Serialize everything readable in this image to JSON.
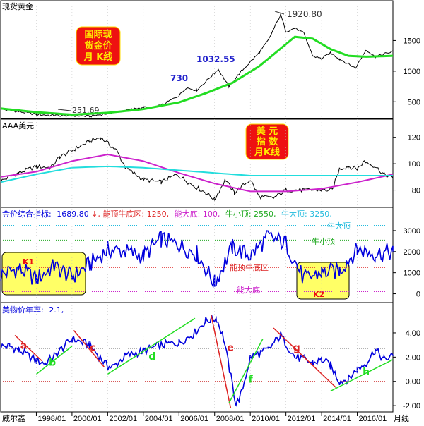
{
  "chart_data": {
    "type": "line",
    "panels": [
      {
        "title": "现货黄金",
        "y_ticks": [
          500,
          1000,
          1500
        ],
        "ylim": [
          250,
          2000
        ],
        "series": [
          {
            "color": "#000000",
            "x": [
              1996.0,
              1997.0,
              1998.0,
              1999.0,
              2000.0,
              2001.0,
              2002.0,
              2003.0,
              2004.0,
              2004.5,
              2005.0,
              2006.0,
              2006.4,
              2007.0,
              2008.0,
              2008.2,
              2008.8,
              2009.5,
              2010.5,
              2011.0,
              2011.7,
              2012.0,
              2012.5,
              2013.0,
              2013.5,
              2014.0,
              2014.5,
              2015.0,
              2015.9,
              2016.5,
              2017.0,
              2017.5,
              2018.0
            ],
            "y": [
              380,
              340,
              295,
              275,
              275,
              262,
              310,
              360,
              410,
              400,
              440,
              600,
              730,
              690,
              970,
              1032,
              750,
              1000,
              1300,
              1500,
              1920,
              1650,
              1700,
              1620,
              1250,
              1200,
              1300,
              1200,
              1050,
              1350,
              1230,
              1280,
              1320
            ]
          },
          {
            "color": "#22dd22",
            "x": [
              1996.0,
              1998.0,
              2000.0,
              2002.0,
              2004.0,
              2006.0,
              2007.5,
              2009.0,
              2010.5,
              2012.5,
              2013.5,
              2014.5,
              2015.5,
              2016.5,
              2018.0
            ],
            "y": [
              390,
              330,
              290,
              320,
              380,
              490,
              640,
              810,
              1080,
              1560,
              1530,
              1360,
              1250,
              1235,
              1250
            ]
          }
        ],
        "annotations": {
          "peak": "1920.80",
          "low": "251.69",
          "v1032": "1032.55",
          "v730": "730",
          "title_box": [
            "国际现",
            "货金价",
            "月 K线"
          ]
        }
      },
      {
        "title": "AAA美元",
        "y_ticks": [
          80,
          100,
          120
        ],
        "ylim": [
          68,
          130
        ],
        "series": [
          {
            "color": "#000000",
            "x": [
              1996.0,
              1997.0,
              1998.0,
              1998.8,
              1999.3,
              2000.0,
              2001.0,
              2001.6,
              2002.5,
              2003.0,
              2004.0,
              2005.0,
              2005.9,
              2006.5,
              2007.5,
              2008.0,
              2008.6,
              2009.1,
              2010.0,
              2010.5,
              2011.3,
              2012.0,
              2012.7,
              2013.5,
              2014.0,
              2014.6,
              2015.0,
              2015.5,
              2016.0,
              2016.4,
              2017.0,
              2017.5,
              2018.0
            ],
            "y": [
              87,
              93,
              98,
              97,
              105,
              110,
              117,
              120,
              110,
              97,
              88,
              86,
              92,
              86,
              78,
              73,
              88,
              78,
              88,
              75,
              74,
              80,
              80,
              80,
              80,
              80,
              96,
              98,
              96,
              102,
              98,
              92,
              89
            ]
          },
          {
            "color": "#cc22cc",
            "x": [
              1996.0,
              1998.0,
              2000.0,
              2002.0,
              2004.0,
              2006.0,
              2008.0,
              2010.0,
              2012.0,
              2014.0,
              2016.0,
              2018.0
            ],
            "y": [
              90,
              94,
              102,
              107,
              102,
              93,
              85,
              79,
              79,
              81,
              86,
              92
            ]
          },
          {
            "color": "#22dddd",
            "x": [
              1996.0,
              1998.0,
              2000.0,
              2002.0,
              2004.0,
              2006.0,
              2008.0,
              2010.0,
              2012.0,
              2014.0,
              2016.0,
              2018.0
            ],
            "y": [
              86,
              92,
              97,
              98,
              97,
              95,
              93,
              91,
              91,
              91,
              91,
              91
            ]
          }
        ],
        "annotations": {
          "title_box": [
            "美  元",
            "指  数",
            "月K线"
          ]
        }
      },
      {
        "title": "金价综合指标",
        "y_ticks": [
          0,
          1000,
          2000,
          3000
        ],
        "ylim": [
          -350,
          3600
        ],
        "series": [
          {
            "color": "#0000dd",
            "x": [
              1996.0,
              1997.0,
              1998.0,
              1999.0,
              2000.0,
              2001.0,
              2002.0,
              2003.0,
              2004.0,
              2005.0,
              2006.0,
              2007.0,
              2008.0,
              2009.0,
              2010.0,
              2011.0,
              2012.0,
              2013.0,
              2014.0,
              2015.0,
              2016.0,
              2017.0,
              2018.0
            ],
            "y": [
              900,
              1200,
              700,
              1300,
              800,
              1400,
              2100,
              2000,
              1800,
              2600,
              2300,
              1900,
              500,
              2200,
              1800,
              2700,
              2400,
              700,
              1000,
              1100,
              2100,
              1900,
              2000
            ]
          }
        ],
        "levels": [
          {
            "name": "牛大顶",
            "value": 3250,
            "color": "#22bbdd"
          },
          {
            "name": "牛小顶",
            "value": 2550,
            "color": "#22aa22"
          },
          {
            "name": "能顶牛底区",
            "value": 1250,
            "color": "#dd2222"
          },
          {
            "name": "能大底",
            "value": 100,
            "color": "#cc22cc"
          }
        ],
        "legend": {
          "label": "金价综合指标:",
          "value": "1689.80",
          "items": [
            "能顶牛底区: 1250,",
            "能大底: 100,",
            "牛小顶: 2550,",
            "牛大顶: 3250,"
          ]
        },
        "annotations": {
          "k1": "K1",
          "k2": "K2"
        }
      },
      {
        "title": "美物价年率",
        "y_ticks": [
          -2.0,
          0.0,
          2.0,
          4.0
        ],
        "ylim": [
          -2.4,
          5.8
        ],
        "series": [
          {
            "color": "#0000dd",
            "x": [
              1996.0,
              1996.5,
              1997.0,
              1998.0,
              1998.5,
              1999.0,
              2000.0,
              2001.0,
              2002.0,
              2002.3,
              2003.0,
              2004.0,
              2005.0,
              2006.0,
              2006.8,
              2007.5,
              2008.1,
              2008.5,
              2009.2,
              2009.5,
              2010.0,
              2011.0,
              2011.7,
              2012.5,
              2013.0,
              2013.5,
              2014.0,
              2014.5,
              2015.0,
              2015.5,
              2016.0,
              2016.5,
              2017.0,
              2017.5,
              2018.0
            ],
            "y": [
              2.9,
              2.9,
              2.6,
              1.7,
              1.5,
              2.1,
              3.5,
              3.0,
              1.2,
              1.2,
              2.1,
              2.5,
              3.0,
              3.2,
              3.9,
              5.0,
              5.2,
              3.6,
              -1.9,
              -1.0,
              2.0,
              2.6,
              3.8,
              2.0,
              1.8,
              1.5,
              1.8,
              1.3,
              0.0,
              0.2,
              1.0,
              1.5,
              2.6,
              1.8,
              2.1
            ]
          }
        ],
        "legend": {
          "label": "美物价年率:",
          "value": "2.1,"
        }
      }
    ],
    "x_axis": {
      "ticks": [
        "1998/01",
        "2000/01",
        "2002/01",
        "2004/01",
        "2006/01",
        "2008/01",
        "2010/01",
        "2012/01",
        "2014/01",
        "2016/01"
      ],
      "footer_left": "威尔鑫",
      "footer_right": "月线"
    },
    "trendlines": [
      {
        "label": "a",
        "color": "#dd2222"
      },
      {
        "label": "b",
        "color": "#22dd22"
      },
      {
        "label": "c",
        "color": "#dd2222"
      },
      {
        "label": "d",
        "color": "#22dd22"
      },
      {
        "label": "e",
        "color": "#dd2222"
      },
      {
        "label": "f",
        "color": "#22dd22"
      },
      {
        "label": "g",
        "color": "#dd2222"
      },
      {
        "label": "h",
        "color": "#22dd22"
      }
    ]
  }
}
